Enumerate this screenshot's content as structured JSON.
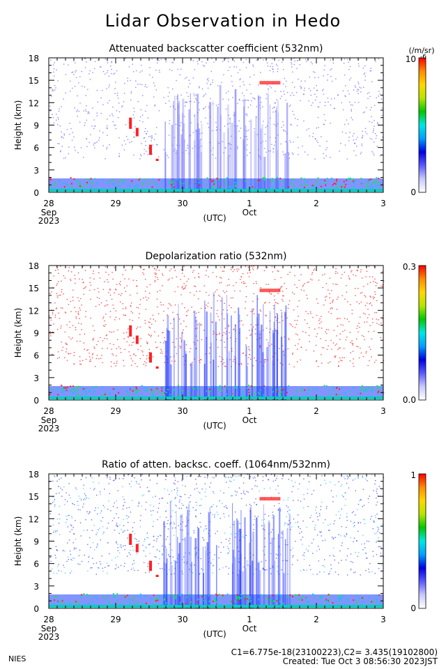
{
  "title": "Lidar Observation in Hedo",
  "footer": {
    "org": "NIES",
    "constants": "C1=6.775e-18(23100223),C2= 3.435(19102800)",
    "created": "Created: Tue Oct  3 08:56:30 2023JST"
  },
  "colors": {
    "colorbar": [
      "#ffffff",
      "#c8c8ff",
      "#5a5aff",
      "#0000e6",
      "#00a0ff",
      "#00e6e6",
      "#00c800",
      "#b4e600",
      "#ffd700",
      "#ff8c00",
      "#ff0000"
    ]
  },
  "chart_data": [
    {
      "type": "heatmap",
      "title": "Attenuated backscatter coefficient (532nm)",
      "ylabel": "Height (km)",
      "xlabel": "(UTC)",
      "x_ticks": [
        "28",
        "29",
        "30",
        "1",
        "2",
        "3"
      ],
      "x_sublabels": {
        "0": [
          "Sep",
          "2023"
        ],
        "3": [
          "Oct"
        ]
      },
      "xlim": [
        "2023-09-28",
        "2023-10-03"
      ],
      "ylim": [
        0,
        18
      ],
      "y_ticks": [
        "0",
        "3",
        "6",
        "9",
        "12",
        "15",
        "18"
      ],
      "colorbar": {
        "min_label": "0",
        "max_label": "10",
        "max_sup": "-6",
        "unit": "(/m/sr)"
      }
    },
    {
      "type": "heatmap",
      "title": "Depolarization ratio (532nm)",
      "ylabel": "Height (km)",
      "xlabel": "(UTC)",
      "x_ticks": [
        "28",
        "29",
        "30",
        "1",
        "2",
        "3"
      ],
      "x_sublabels": {
        "0": [
          "Sep",
          "2023"
        ],
        "3": [
          "Oct"
        ]
      },
      "xlim": [
        "2023-09-28",
        "2023-10-03"
      ],
      "ylim": [
        0,
        18
      ],
      "y_ticks": [
        "0",
        "3",
        "6",
        "9",
        "12",
        "15",
        "18"
      ],
      "colorbar": {
        "min_label": "0.0",
        "max_label": "0.3"
      }
    },
    {
      "type": "heatmap",
      "title": "Ratio of atten. backsc. coeff. (1064nm/532nm)",
      "ylabel": "Height (km)",
      "xlabel": "(UTC)",
      "x_ticks": [
        "28",
        "29",
        "30",
        "1",
        "2",
        "3"
      ],
      "x_sublabels": {
        "0": [
          "Sep",
          "2023"
        ],
        "3": [
          "Oct"
        ]
      },
      "xlim": [
        "2023-09-28",
        "2023-10-03"
      ],
      "ylim": [
        0,
        18
      ],
      "y_ticks": [
        "0",
        "3",
        "6",
        "9",
        "12",
        "15",
        "18"
      ],
      "colorbar": {
        "min_label": "0",
        "max_label": "1"
      }
    }
  ]
}
